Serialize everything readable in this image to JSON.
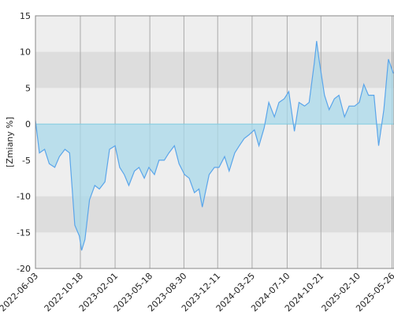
{
  "chart_data": {
    "type": "area",
    "ylabel": "[Zmiany %]",
    "x": [
      "2022-06-03",
      "2022-06-15",
      "2022-07-01",
      "2022-07-15",
      "2022-08-01",
      "2022-08-15",
      "2022-09-01",
      "2022-09-15",
      "2022-10-01",
      "2022-10-15",
      "2022-10-22",
      "2022-11-01",
      "2022-11-15",
      "2022-12-01",
      "2022-12-15",
      "2023-01-01",
      "2023-01-15",
      "2023-02-01",
      "2023-02-15",
      "2023-03-01",
      "2023-03-15",
      "2023-04-01",
      "2023-04-15",
      "2023-05-01",
      "2023-05-15",
      "2023-06-01",
      "2023-06-15",
      "2023-07-01",
      "2023-07-15",
      "2023-08-01",
      "2023-08-15",
      "2023-09-01",
      "2023-09-15",
      "2023-10-01",
      "2023-10-15",
      "2023-10-25",
      "2023-11-01",
      "2023-11-15",
      "2023-12-01",
      "2023-12-15",
      "2024-01-01",
      "2024-01-15",
      "2024-02-01",
      "2024-02-15",
      "2024-03-01",
      "2024-03-15",
      "2024-04-01",
      "2024-04-15",
      "2024-05-01",
      "2024-05-15",
      "2024-06-01",
      "2024-06-15",
      "2024-07-01",
      "2024-07-15",
      "2024-08-01",
      "2024-08-15",
      "2024-09-01",
      "2024-09-15",
      "2024-10-01",
      "2024-10-08",
      "2024-10-15",
      "2024-11-01",
      "2024-11-15",
      "2024-12-01",
      "2024-12-15",
      "2025-01-01",
      "2025-01-15",
      "2025-02-01",
      "2025-02-15",
      "2025-03-01",
      "2025-03-15",
      "2025-04-01",
      "2025-04-15",
      "2025-05-01",
      "2025-05-15",
      "2025-05-30"
    ],
    "values": [
      0.5,
      -4,
      -3.5,
      -5.5,
      -6,
      -4.5,
      -3.5,
      -4,
      -14,
      -15.5,
      -17.5,
      -16,
      -10.5,
      -8.5,
      -9,
      -8,
      -3.5,
      -3,
      -6,
      -7,
      -8.5,
      -6.5,
      -6,
      -7.5,
      -6,
      -7,
      -5,
      -5,
      -4,
      -3,
      -5.5,
      -7,
      -7.5,
      -9.5,
      -9,
      -11.5,
      -10,
      -7,
      -6,
      -6,
      -4.5,
      -6.5,
      -4,
      -3,
      -2,
      -1.5,
      -0.8,
      -3,
      -0.5,
      3,
      1,
      3,
      3.5,
      4.5,
      -1,
      3,
      2.5,
      3,
      8.5,
      11.5,
      9,
      4,
      2,
      3.5,
      4,
      1,
      2.5,
      2.5,
      3,
      5.5,
      4,
      4,
      -3,
      2,
      9,
      7
    ],
    "color": "#5aa5ea",
    "fill": "#a8d8ea",
    "xlim": [
      "2022-06-03",
      "2025-06-01"
    ],
    "xticks": [
      "2022-06-03",
      "2022-10-18",
      "2023-02-01",
      "2023-05-18",
      "2023-08-30",
      "2023-12-11",
      "2024-03-25",
      "2024-07-10",
      "2024-10-21",
      "2025-02-10",
      "2025-05-26"
    ],
    "ylim": [
      -20,
      15
    ],
    "yticks": [
      15,
      10,
      5,
      0,
      -5,
      -10,
      -15,
      -20
    ],
    "grid": true
  }
}
